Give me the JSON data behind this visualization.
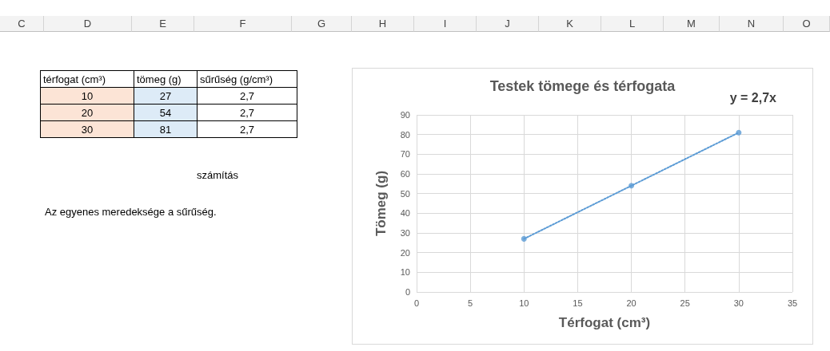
{
  "chart_data": [
    {
      "type": "other",
      "categories": [
        "C",
        "D",
        "E",
        "F",
        "G",
        "H",
        "I",
        "J",
        "K",
        "L",
        "M",
        "N",
        "O"
      ],
      "annotations": [
        "térfogat (cm³)",
        "tömeg (g)",
        "sűrűség (g/cm³)",
        "10",
        "27",
        "2,7",
        "20",
        "54",
        "2,7",
        "30",
        "81",
        "2,7",
        "számítás",
        "Az egyenes meredeksége a sűrűség."
      ]
    },
    {
      "type": "scatter",
      "title": "Testek tömege és térfogata",
      "xlabel": "Térfogat (cm³)",
      "ylabel": "Tömeg (g)",
      "series": [
        {
          "type": "scatter",
          "color": "#5b9bd5",
          "x": [
            10,
            20,
            30
          ],
          "values": [
            27,
            54,
            81
          ],
          "marker": "circle"
        },
        {
          "type": "line",
          "color": "#5b9bd5",
          "x": [
            10,
            30
          ],
          "values": [
            27,
            81
          ],
          "line_style": "dotted",
          "marker": "none"
        }
      ],
      "xlim": [
        0,
        35
      ],
      "xticks": [
        0,
        5,
        10,
        15,
        20,
        25,
        30,
        35
      ],
      "ylim": [
        0,
        90
      ],
      "yticks": [
        0,
        10,
        20,
        30,
        40,
        50,
        60,
        70,
        80,
        90
      ],
      "grid": true,
      "annotations": [
        "y = 2,7x"
      ]
    }
  ]
}
